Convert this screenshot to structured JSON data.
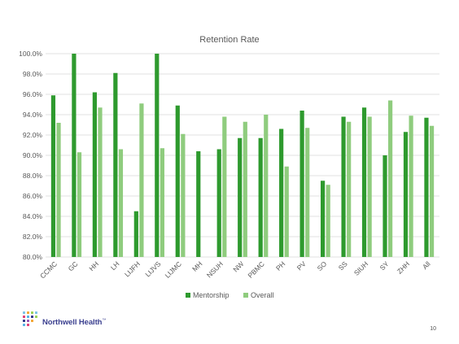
{
  "colors": {
    "mentorship": "#2e9a2e",
    "overall": "#8fcc7e",
    "grid": "#d9d9d9",
    "axis_text": "#595959",
    "title_text": "#595959",
    "logo_text": "#3a3f8f"
  },
  "chart_data": {
    "type": "bar",
    "title": "Retention Rate",
    "xlabel": "",
    "ylabel": "",
    "ylim": [
      80,
      100
    ],
    "y_ticks": [
      "80.0%",
      "82.0%",
      "84.0%",
      "86.0%",
      "88.0%",
      "90.0%",
      "92.0%",
      "94.0%",
      "96.0%",
      "98.0%",
      "100.0%"
    ],
    "grid": true,
    "legend_position": "bottom",
    "categories": [
      "CCMC",
      "GC",
      "HH",
      "LH",
      "LIJFH",
      "LIJVS",
      "LIJMC",
      "MH",
      "NSUH",
      "NW",
      "PBMC",
      "PH",
      "PV",
      "SO",
      "SS",
      "SIUH",
      "SY",
      "ZHH",
      "All"
    ],
    "series": [
      {
        "name": "Mentorship",
        "values": [
          95.9,
          100.0,
          96.2,
          98.1,
          84.5,
          100.0,
          94.9,
          90.4,
          90.6,
          91.7,
          91.7,
          92.6,
          94.4,
          87.5,
          93.8,
          94.7,
          90.0,
          92.3,
          93.7
        ]
      },
      {
        "name": "Overall",
        "values": [
          93.2,
          90.3,
          94.7,
          90.6,
          95.1,
          90.7,
          92.1,
          null,
          93.8,
          93.3,
          94.0,
          88.9,
          92.7,
          87.1,
          93.3,
          93.8,
          95.4,
          93.9,
          92.9
        ]
      }
    ]
  },
  "footer": {
    "logo_text": "Northwell Health",
    "logo_mark": "™",
    "page_number": "10"
  }
}
